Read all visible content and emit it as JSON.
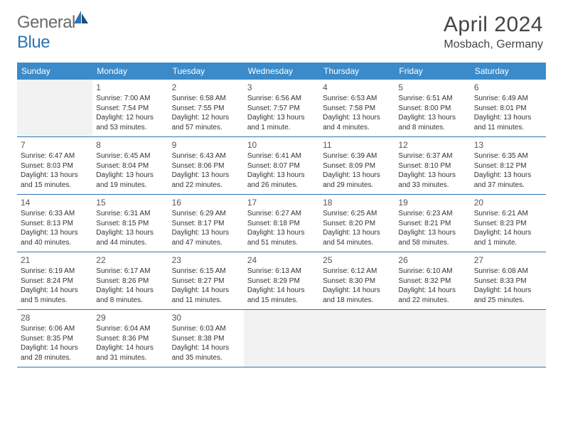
{
  "logo": {
    "general": "General",
    "blue": "Blue"
  },
  "title": "April 2024",
  "location": "Mosbach, Germany",
  "weekdays": [
    "Sunday",
    "Monday",
    "Tuesday",
    "Wednesday",
    "Thursday",
    "Friday",
    "Saturday"
  ],
  "header_bg": "#3b8bca",
  "border_color": "#2e74b5",
  "empty_bg": "#f2f2f2",
  "weeks": [
    [
      {
        "empty": true
      },
      {
        "day": "1",
        "sunrise": "Sunrise: 7:00 AM",
        "sunset": "Sunset: 7:54 PM",
        "daylight1": "Daylight: 12 hours",
        "daylight2": "and 53 minutes."
      },
      {
        "day": "2",
        "sunrise": "Sunrise: 6:58 AM",
        "sunset": "Sunset: 7:55 PM",
        "daylight1": "Daylight: 12 hours",
        "daylight2": "and 57 minutes."
      },
      {
        "day": "3",
        "sunrise": "Sunrise: 6:56 AM",
        "sunset": "Sunset: 7:57 PM",
        "daylight1": "Daylight: 13 hours",
        "daylight2": "and 1 minute."
      },
      {
        "day": "4",
        "sunrise": "Sunrise: 6:53 AM",
        "sunset": "Sunset: 7:58 PM",
        "daylight1": "Daylight: 13 hours",
        "daylight2": "and 4 minutes."
      },
      {
        "day": "5",
        "sunrise": "Sunrise: 6:51 AM",
        "sunset": "Sunset: 8:00 PM",
        "daylight1": "Daylight: 13 hours",
        "daylight2": "and 8 minutes."
      },
      {
        "day": "6",
        "sunrise": "Sunrise: 6:49 AM",
        "sunset": "Sunset: 8:01 PM",
        "daylight1": "Daylight: 13 hours",
        "daylight2": "and 11 minutes."
      }
    ],
    [
      {
        "day": "7",
        "sunrise": "Sunrise: 6:47 AM",
        "sunset": "Sunset: 8:03 PM",
        "daylight1": "Daylight: 13 hours",
        "daylight2": "and 15 minutes."
      },
      {
        "day": "8",
        "sunrise": "Sunrise: 6:45 AM",
        "sunset": "Sunset: 8:04 PM",
        "daylight1": "Daylight: 13 hours",
        "daylight2": "and 19 minutes."
      },
      {
        "day": "9",
        "sunrise": "Sunrise: 6:43 AM",
        "sunset": "Sunset: 8:06 PM",
        "daylight1": "Daylight: 13 hours",
        "daylight2": "and 22 minutes."
      },
      {
        "day": "10",
        "sunrise": "Sunrise: 6:41 AM",
        "sunset": "Sunset: 8:07 PM",
        "daylight1": "Daylight: 13 hours",
        "daylight2": "and 26 minutes."
      },
      {
        "day": "11",
        "sunrise": "Sunrise: 6:39 AM",
        "sunset": "Sunset: 8:09 PM",
        "daylight1": "Daylight: 13 hours",
        "daylight2": "and 29 minutes."
      },
      {
        "day": "12",
        "sunrise": "Sunrise: 6:37 AM",
        "sunset": "Sunset: 8:10 PM",
        "daylight1": "Daylight: 13 hours",
        "daylight2": "and 33 minutes."
      },
      {
        "day": "13",
        "sunrise": "Sunrise: 6:35 AM",
        "sunset": "Sunset: 8:12 PM",
        "daylight1": "Daylight: 13 hours",
        "daylight2": "and 37 minutes."
      }
    ],
    [
      {
        "day": "14",
        "sunrise": "Sunrise: 6:33 AM",
        "sunset": "Sunset: 8:13 PM",
        "daylight1": "Daylight: 13 hours",
        "daylight2": "and 40 minutes."
      },
      {
        "day": "15",
        "sunrise": "Sunrise: 6:31 AM",
        "sunset": "Sunset: 8:15 PM",
        "daylight1": "Daylight: 13 hours",
        "daylight2": "and 44 minutes."
      },
      {
        "day": "16",
        "sunrise": "Sunrise: 6:29 AM",
        "sunset": "Sunset: 8:17 PM",
        "daylight1": "Daylight: 13 hours",
        "daylight2": "and 47 minutes."
      },
      {
        "day": "17",
        "sunrise": "Sunrise: 6:27 AM",
        "sunset": "Sunset: 8:18 PM",
        "daylight1": "Daylight: 13 hours",
        "daylight2": "and 51 minutes."
      },
      {
        "day": "18",
        "sunrise": "Sunrise: 6:25 AM",
        "sunset": "Sunset: 8:20 PM",
        "daylight1": "Daylight: 13 hours",
        "daylight2": "and 54 minutes."
      },
      {
        "day": "19",
        "sunrise": "Sunrise: 6:23 AM",
        "sunset": "Sunset: 8:21 PM",
        "daylight1": "Daylight: 13 hours",
        "daylight2": "and 58 minutes."
      },
      {
        "day": "20",
        "sunrise": "Sunrise: 6:21 AM",
        "sunset": "Sunset: 8:23 PM",
        "daylight1": "Daylight: 14 hours",
        "daylight2": "and 1 minute."
      }
    ],
    [
      {
        "day": "21",
        "sunrise": "Sunrise: 6:19 AM",
        "sunset": "Sunset: 8:24 PM",
        "daylight1": "Daylight: 14 hours",
        "daylight2": "and 5 minutes."
      },
      {
        "day": "22",
        "sunrise": "Sunrise: 6:17 AM",
        "sunset": "Sunset: 8:26 PM",
        "daylight1": "Daylight: 14 hours",
        "daylight2": "and 8 minutes."
      },
      {
        "day": "23",
        "sunrise": "Sunrise: 6:15 AM",
        "sunset": "Sunset: 8:27 PM",
        "daylight1": "Daylight: 14 hours",
        "daylight2": "and 11 minutes."
      },
      {
        "day": "24",
        "sunrise": "Sunrise: 6:13 AM",
        "sunset": "Sunset: 8:29 PM",
        "daylight1": "Daylight: 14 hours",
        "daylight2": "and 15 minutes."
      },
      {
        "day": "25",
        "sunrise": "Sunrise: 6:12 AM",
        "sunset": "Sunset: 8:30 PM",
        "daylight1": "Daylight: 14 hours",
        "daylight2": "and 18 minutes."
      },
      {
        "day": "26",
        "sunrise": "Sunrise: 6:10 AM",
        "sunset": "Sunset: 8:32 PM",
        "daylight1": "Daylight: 14 hours",
        "daylight2": "and 22 minutes."
      },
      {
        "day": "27",
        "sunrise": "Sunrise: 6:08 AM",
        "sunset": "Sunset: 8:33 PM",
        "daylight1": "Daylight: 14 hours",
        "daylight2": "and 25 minutes."
      }
    ],
    [
      {
        "day": "28",
        "sunrise": "Sunrise: 6:06 AM",
        "sunset": "Sunset: 8:35 PM",
        "daylight1": "Daylight: 14 hours",
        "daylight2": "and 28 minutes."
      },
      {
        "day": "29",
        "sunrise": "Sunrise: 6:04 AM",
        "sunset": "Sunset: 8:36 PM",
        "daylight1": "Daylight: 14 hours",
        "daylight2": "and 31 minutes."
      },
      {
        "day": "30",
        "sunrise": "Sunrise: 6:03 AM",
        "sunset": "Sunset: 8:38 PM",
        "daylight1": "Daylight: 14 hours",
        "daylight2": "and 35 minutes."
      },
      {
        "empty": true
      },
      {
        "empty": true
      },
      {
        "empty": true
      },
      {
        "empty": true
      }
    ]
  ]
}
